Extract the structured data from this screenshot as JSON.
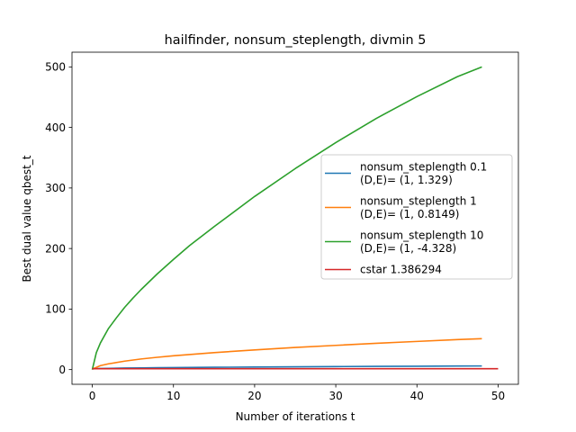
{
  "chart_data": {
    "type": "line",
    "title": "hailfinder, nonsum_steplength, divmin 5",
    "xlabel": "Number of iterations t",
    "ylabel": "Best dual value qbest_t",
    "xlim": [
      -2.5,
      52.5
    ],
    "ylim": [
      -24.3,
      524.3
    ],
    "xticks": [
      0,
      10,
      20,
      30,
      40,
      50
    ],
    "yticks": [
      0,
      100,
      200,
      300,
      400,
      500
    ],
    "grid": false,
    "legend_position": "center-right",
    "series": [
      {
        "name": "nonsum_steplength 0.1",
        "name_line2": "(D,E)= (1, 1.329)",
        "color": "#1f77b4",
        "x": [
          0,
          1,
          2,
          4,
          6,
          8,
          10,
          15,
          20,
          25,
          30,
          35,
          40,
          45,
          48
        ],
        "y": [
          1.3,
          1.8,
          2.1,
          2.5,
          2.8,
          3.1,
          3.3,
          3.8,
          4.2,
          4.6,
          5.0,
          5.3,
          5.6,
          5.9,
          6.0
        ]
      },
      {
        "name": "nonsum_steplength 1",
        "name_line2": "(D,E)= (1, 0.8149)",
        "color": "#ff7f0e",
        "x": [
          0,
          1,
          2,
          4,
          6,
          8,
          10,
          15,
          20,
          25,
          30,
          35,
          40,
          45,
          48
        ],
        "y": [
          0.8,
          6.5,
          9.5,
          14.0,
          17.5,
          20.3,
          22.8,
          28.0,
          32.5,
          36.5,
          40.0,
          43.5,
          46.5,
          49.5,
          51.0
        ]
      },
      {
        "name": "nonsum_steplength 10",
        "name_line2": "(D,E)= (1, -4.328)",
        "color": "#2ca02c",
        "x": [
          0,
          0.5,
          1,
          2,
          3,
          4,
          5,
          6,
          8,
          10,
          12,
          15,
          20,
          25,
          30,
          35,
          40,
          45,
          48
        ],
        "y": [
          0,
          28,
          44,
          68,
          86,
          103,
          118,
          132,
          158,
          182,
          205,
          236,
          286,
          332,
          375,
          415,
          451,
          484,
          500
        ]
      },
      {
        "name": "cstar 1.386294",
        "color": "#d62728",
        "x": [
          0,
          50
        ],
        "y": [
          1.386294,
          1.386294
        ]
      }
    ]
  }
}
